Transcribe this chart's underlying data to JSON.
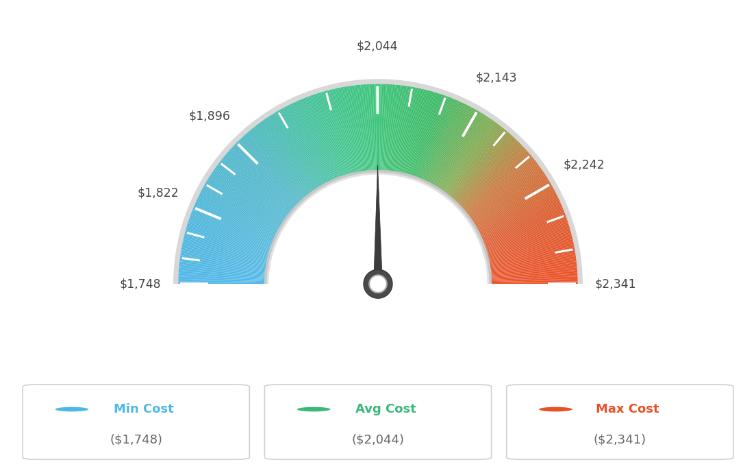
{
  "min_val": 1748,
  "max_val": 2341,
  "avg_val": 2044,
  "tick_labels": [
    "$1,748",
    "$1,822",
    "$1,896",
    "$2,044",
    "$2,143",
    "$2,242",
    "$2,341"
  ],
  "tick_values": [
    1748,
    1822,
    1896,
    2044,
    2143,
    2242,
    2341
  ],
  "color_stops": [
    [
      0.0,
      [
        78,
        182,
        232
      ]
    ],
    [
      0.25,
      [
        78,
        182,
        200
      ]
    ],
    [
      0.42,
      [
        62,
        195,
        140
      ]
    ],
    [
      0.5,
      [
        58,
        195,
        120
      ]
    ],
    [
      0.6,
      [
        58,
        185,
        100
      ]
    ],
    [
      0.7,
      [
        130,
        170,
        80
      ]
    ],
    [
      0.78,
      [
        200,
        120,
        60
      ]
    ],
    [
      0.88,
      [
        220,
        90,
        45
      ]
    ],
    [
      1.0,
      [
        235,
        80,
        38
      ]
    ]
  ],
  "legend_items": [
    {
      "label": "Min Cost",
      "sublabel": "($1,748)",
      "color": "#4db8e8"
    },
    {
      "label": "Avg Cost",
      "sublabel": "($2,044)",
      "color": "#3cb87a"
    },
    {
      "label": "Max Cost",
      "sublabel": "($2,341)",
      "color": "#e8502a"
    }
  ],
  "background_color": "#ffffff"
}
